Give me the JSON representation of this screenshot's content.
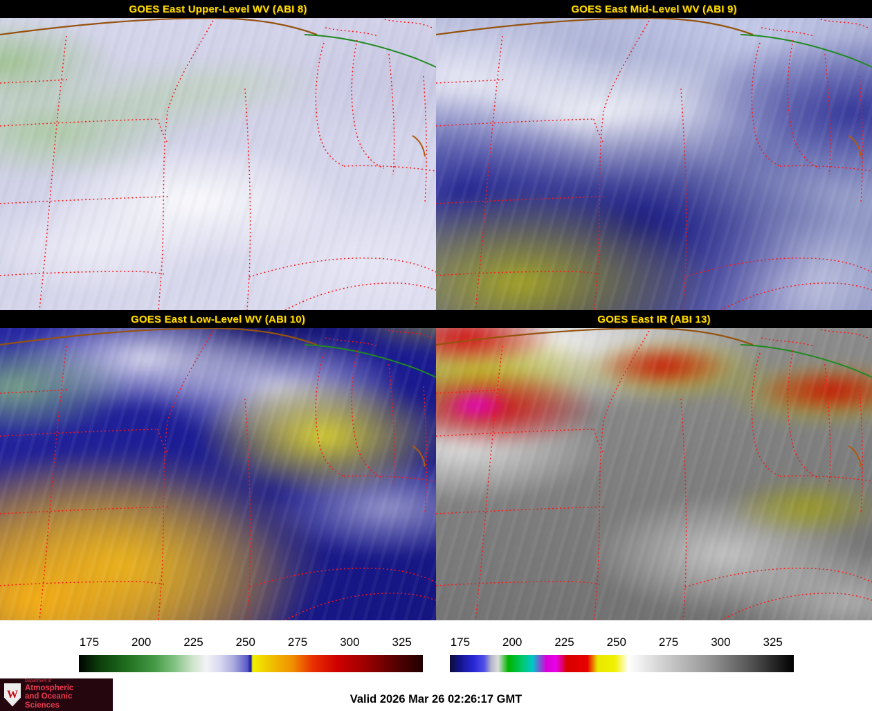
{
  "panels": [
    {
      "id": "abi8",
      "title": "GOES East Upper-Level WV (ABI 8)"
    },
    {
      "id": "abi9",
      "title": "GOES East Mid-Level WV (ABI 9)"
    },
    {
      "id": "abi10",
      "title": "GOES East Low-Level WV (ABI 10)"
    },
    {
      "id": "abi13",
      "title": "GOES East IR (ABI 13)"
    }
  ],
  "colorbars": [
    {
      "name": "water-vapor-enhancement",
      "ticks": [
        "175",
        "200",
        "225",
        "250",
        "275",
        "300",
        "325"
      ],
      "stops": [
        [
          "#000400",
          0
        ],
        [
          "#0c3e0c",
          6
        ],
        [
          "#1f6f1f",
          14
        ],
        [
          "#459a45",
          22
        ],
        [
          "#85c285",
          28
        ],
        [
          "#cde4c9",
          33
        ],
        [
          "#f3f3f6",
          37
        ],
        [
          "#d9d9ef",
          41
        ],
        [
          "#aaaade",
          45
        ],
        [
          "#5a5ac8",
          49
        ],
        [
          "#14149e",
          50
        ],
        [
          "#f0f000",
          50.5
        ],
        [
          "#f0c000",
          56
        ],
        [
          "#f09000",
          62
        ],
        [
          "#e83000",
          68
        ],
        [
          "#d00000",
          75
        ],
        [
          "#980000",
          84
        ],
        [
          "#500000",
          93
        ],
        [
          "#200000",
          100
        ]
      ]
    },
    {
      "name": "ir-enhancement",
      "ticks": [
        "175",
        "200",
        "225",
        "250",
        "275",
        "300",
        "325"
      ],
      "stops": [
        [
          "#0c0c3c",
          0
        ],
        [
          "#14148c",
          3
        ],
        [
          "#2828d8",
          7
        ],
        [
          "#5050e8",
          10
        ],
        [
          "#b4b4c8",
          12
        ],
        [
          "#dcdcdc",
          14
        ],
        [
          "#00b400",
          17
        ],
        [
          "#00c86a",
          21
        ],
        [
          "#00c8c8",
          24
        ],
        [
          "#d800d8",
          28
        ],
        [
          "#e800e8",
          31
        ],
        [
          "#d80000",
          34
        ],
        [
          "#e80000",
          40
        ],
        [
          "#e8e800",
          43
        ],
        [
          "#f0f000",
          48
        ],
        [
          "#ffffff",
          52
        ],
        [
          "#d0d0d0",
          62
        ],
        [
          "#989898",
          75
        ],
        [
          "#505050",
          88
        ],
        [
          "#000000",
          100
        ]
      ]
    }
  ],
  "footer": {
    "valid_time": "Valid 2026 Mar 26 02:26:17 GMT"
  },
  "logo": {
    "department_label": "Department of",
    "line1": "Atmospheric",
    "line2": "and Oceanic Sciences",
    "crest_letter": "W"
  },
  "colors": {
    "panel_title_text": "#ffdf00",
    "state_border_dotted": "#ff1414",
    "national_border_brown": "#96530f",
    "national_border_green": "#1f8a1f",
    "logo_background": "#26060e",
    "logo_text": "#e8394f"
  }
}
